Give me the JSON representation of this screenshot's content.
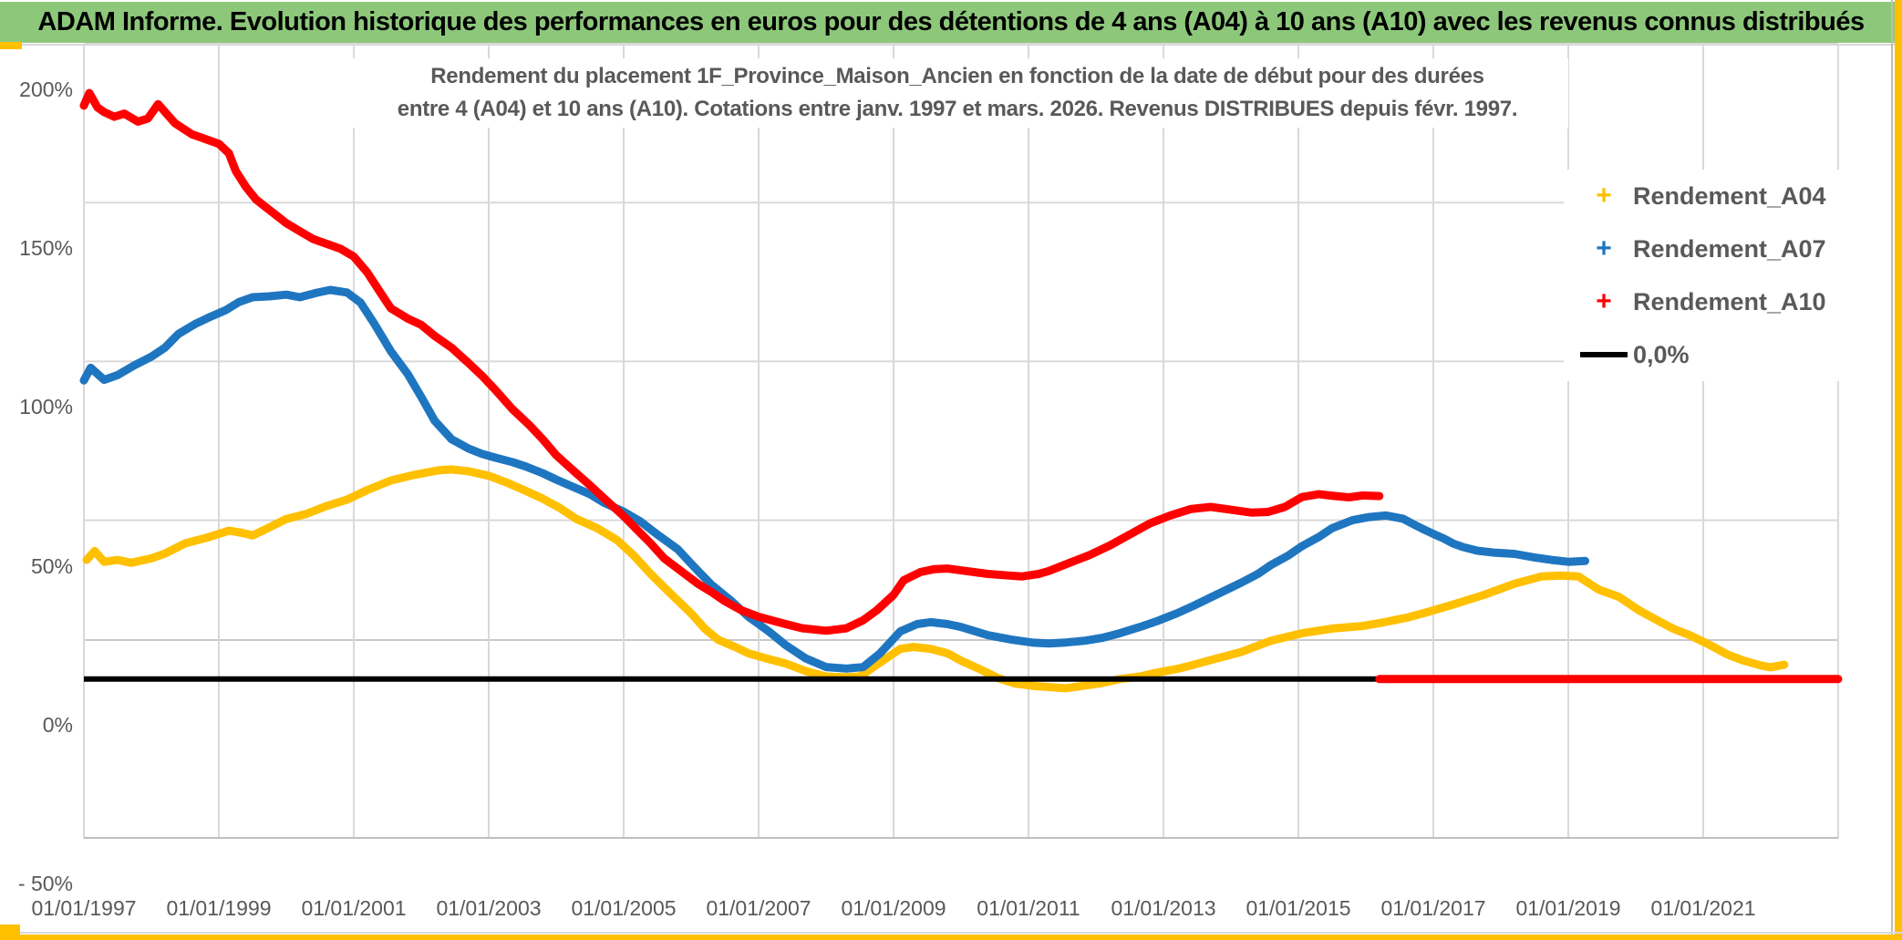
{
  "banner": {
    "title": "ADAM Informe. Evolution historique des performances en euros pour des détentions de 4 ans (A04) à 10 ans (A10) avec les revenus connus distribués",
    "bg_color": "#8DC87A",
    "accent_color": "#FFC000"
  },
  "chart": {
    "title_line1": "Rendement du placement 1F_Province_Maison_Ancien en fonction de la date de début pour des durées",
    "title_line2": "entre 4 (A04) et 10 ans (A10). Cotations entre janv. 1997 et mars. 2026. Revenus DISTRIBUES depuis févr. 1997.",
    "legend": [
      {
        "label": "Rendement_A04",
        "marker": "plus",
        "color": "#FFC000"
      },
      {
        "label": "Rendement_A07",
        "marker": "plus",
        "color": "#1F76C0"
      },
      {
        "label": "Rendement_A10",
        "marker": "plus",
        "color": "#FF0000"
      },
      {
        "label": "0,0%",
        "marker": "line",
        "color": "#000000"
      }
    ]
  },
  "chart_data": {
    "type": "line",
    "title": "Rendement du placement 1F_Province_Maison_Ancien en fonction de la date de début pour des durées entre 4 (A04) et 10 ans (A10). Cotations entre janv. 1997 et mars. 2026. Revenus DISTRIBUES depuis févr. 1997.",
    "x_axis": {
      "labels": [
        "01/01/1997",
        "01/01/1999",
        "01/01/2001",
        "01/01/2003",
        "01/01/2005",
        "01/01/2007",
        "01/01/2009",
        "01/01/2011",
        "01/01/2013",
        "01/01/2015",
        "01/01/2017",
        "01/01/2019",
        "01/01/2021"
      ],
      "label_years": [
        1997,
        1999,
        2001,
        2003,
        2005,
        2007,
        2009,
        2011,
        2013,
        2015,
        2017,
        2019,
        2021
      ],
      "gridline_years": [
        1997,
        1999,
        2001,
        2003,
        2005,
        2007,
        2009,
        2011,
        2013,
        2015,
        2017,
        2019,
        2021,
        2023
      ],
      "min_year": 1997,
      "max_year": 2023
    },
    "y_axis": {
      "tick_labels": [
        "200%",
        "150%",
        "100%",
        "50%",
        "0%",
        "- 50%"
      ],
      "tick_values": [
        200,
        150,
        100,
        50,
        0,
        -50
      ],
      "min": -50,
      "max": 200,
      "unit": "%",
      "extra_faint_line_pct": 12.3,
      "gridline_color": "#D9D9D9"
    },
    "zero_line": {
      "label": "0,0%",
      "color": "#000000",
      "value": 0,
      "from_year": 1997.0,
      "to_year": 2016.2
    },
    "red_zero_segment": {
      "color": "#FF0000",
      "value": 0,
      "from_year": 2016.2,
      "to_year": 2023.0
    },
    "series": [
      {
        "name": "Rendement_A04",
        "color": "#FFC000",
        "points": [
          [
            1997.04,
            37.5
          ],
          [
            1997.16,
            40.3
          ],
          [
            1997.3,
            36.9
          ],
          [
            1997.5,
            37.5
          ],
          [
            1997.7,
            36.6
          ],
          [
            1998.0,
            38
          ],
          [
            1998.2,
            39.5
          ],
          [
            1998.5,
            42.7
          ],
          [
            1998.85,
            44.7
          ],
          [
            1999.15,
            46.7
          ],
          [
            1999.35,
            46
          ],
          [
            1999.5,
            45.2
          ],
          [
            1999.65,
            46.7
          ],
          [
            2000.0,
            50.4
          ],
          [
            2000.3,
            52
          ],
          [
            2000.6,
            54.5
          ],
          [
            2000.9,
            56.5
          ],
          [
            2001.2,
            59.5
          ],
          [
            2001.55,
            62.5
          ],
          [
            2001.9,
            64.3
          ],
          [
            2002.25,
            65.7
          ],
          [
            2002.45,
            66
          ],
          [
            2002.7,
            65.4
          ],
          [
            2003.0,
            64
          ],
          [
            2003.25,
            62
          ],
          [
            2003.5,
            59.7
          ],
          [
            2003.8,
            56.8
          ],
          [
            2004.05,
            53.9
          ],
          [
            2004.3,
            50.4
          ],
          [
            2004.6,
            47.6
          ],
          [
            2004.9,
            43.8
          ],
          [
            2005.15,
            38.9
          ],
          [
            2005.4,
            33.1
          ],
          [
            2005.7,
            26.8
          ],
          [
            2006.0,
            20.7
          ],
          [
            2006.2,
            15.9
          ],
          [
            2006.4,
            12.4
          ],
          [
            2006.65,
            10.1
          ],
          [
            2006.85,
            8.1
          ],
          [
            2007.15,
            6.3
          ],
          [
            2007.4,
            4.9
          ],
          [
            2007.7,
            2.5
          ],
          [
            2008.0,
            0.8
          ],
          [
            2008.25,
            0.6
          ],
          [
            2008.5,
            0.8
          ],
          [
            2008.8,
            5.2
          ],
          [
            2009.1,
            9.5
          ],
          [
            2009.3,
            10.1
          ],
          [
            2009.55,
            9.5
          ],
          [
            2009.8,
            8.1
          ],
          [
            2010.0,
            5.8
          ],
          [
            2010.3,
            2.9
          ],
          [
            2010.55,
            0.3
          ],
          [
            2010.8,
            -1.4
          ],
          [
            2011.1,
            -2.2
          ],
          [
            2011.55,
            -2.9
          ],
          [
            2012.05,
            -1.4
          ],
          [
            2012.35,
            0
          ],
          [
            2012.65,
            0.8
          ],
          [
            2012.9,
            2
          ],
          [
            2013.2,
            3.2
          ],
          [
            2013.45,
            4.5
          ],
          [
            2013.7,
            6
          ],
          [
            2014.15,
            8.5
          ],
          [
            2014.6,
            12.1
          ],
          [
            2015.05,
            14.4
          ],
          [
            2015.5,
            15.9
          ],
          [
            2015.95,
            16.7
          ],
          [
            2016.2,
            17.6
          ],
          [
            2016.6,
            19.3
          ],
          [
            2016.9,
            21
          ],
          [
            2017.3,
            23.5
          ],
          [
            2017.75,
            26.5
          ],
          [
            2018.2,
            30
          ],
          [
            2018.6,
            32.3
          ],
          [
            2018.9,
            32.6
          ],
          [
            2019.15,
            32.3
          ],
          [
            2019.45,
            28.2
          ],
          [
            2019.75,
            25.9
          ],
          [
            2020.05,
            21.6
          ],
          [
            2020.3,
            18.7
          ],
          [
            2020.55,
            15.9
          ],
          [
            2020.8,
            13.8
          ],
          [
            2021.1,
            10.7
          ],
          [
            2021.35,
            7.8
          ],
          [
            2021.6,
            5.8
          ],
          [
            2021.85,
            4.3
          ],
          [
            2022.0,
            3.7
          ],
          [
            2022.2,
            4.5
          ]
        ]
      },
      {
        "name": "Rendement_A07",
        "color": "#1F76C0",
        "points": [
          [
            1997.0,
            94
          ],
          [
            1997.1,
            98
          ],
          [
            1997.3,
            94.2
          ],
          [
            1997.5,
            95.7
          ],
          [
            1997.75,
            98.8
          ],
          [
            1998.0,
            101.5
          ],
          [
            1998.2,
            104.3
          ],
          [
            1998.4,
            108.6
          ],
          [
            1998.65,
            111.8
          ],
          [
            1998.85,
            113.8
          ],
          [
            1999.1,
            116.1
          ],
          [
            1999.3,
            118.7
          ],
          [
            1999.5,
            120.2
          ],
          [
            1999.75,
            120.5
          ],
          [
            2000.0,
            121
          ],
          [
            2000.2,
            120.2
          ],
          [
            2000.45,
            121.6
          ],
          [
            2000.65,
            122.5
          ],
          [
            2000.9,
            121.7
          ],
          [
            2001.1,
            118.5
          ],
          [
            2001.3,
            112
          ],
          [
            2001.55,
            103.2
          ],
          [
            2001.8,
            96
          ],
          [
            2002.0,
            88.8
          ],
          [
            2002.2,
            81.3
          ],
          [
            2002.45,
            75.5
          ],
          [
            2002.7,
            72.6
          ],
          [
            2002.9,
            70.9
          ],
          [
            2003.1,
            69.7
          ],
          [
            2003.35,
            68.3
          ],
          [
            2003.55,
            66.9
          ],
          [
            2003.8,
            64.8
          ],
          [
            2004.0,
            62.8
          ],
          [
            2004.25,
            60.5
          ],
          [
            2004.5,
            58.2
          ],
          [
            2004.7,
            55.6
          ],
          [
            2005.0,
            52.7
          ],
          [
            2005.25,
            49.6
          ],
          [
            2005.5,
            45.5
          ],
          [
            2005.8,
            40.9
          ],
          [
            2006.05,
            35.2
          ],
          [
            2006.3,
            29.7
          ],
          [
            2006.6,
            24.5
          ],
          [
            2006.85,
            19.6
          ],
          [
            2007.15,
            15
          ],
          [
            2007.4,
            10.7
          ],
          [
            2007.7,
            6.5
          ],
          [
            2008.0,
            3.8
          ],
          [
            2008.3,
            3.3
          ],
          [
            2008.55,
            3.8
          ],
          [
            2008.8,
            8.1
          ],
          [
            2009.1,
            15
          ],
          [
            2009.35,
            17.3
          ],
          [
            2009.55,
            17.9
          ],
          [
            2009.8,
            17.3
          ],
          [
            2010.0,
            16.4
          ],
          [
            2010.4,
            13.8
          ],
          [
            2010.75,
            12.4
          ],
          [
            2011.05,
            11.5
          ],
          [
            2011.3,
            11.2
          ],
          [
            2011.55,
            11.5
          ],
          [
            2011.85,
            12.1
          ],
          [
            2012.1,
            13
          ],
          [
            2012.35,
            14.4
          ],
          [
            2012.65,
            16.4
          ],
          [
            2012.9,
            18.2
          ],
          [
            2013.2,
            20.7
          ],
          [
            2013.45,
            23.1
          ],
          [
            2013.7,
            25.7
          ],
          [
            2014.15,
            30.3
          ],
          [
            2014.4,
            33.1
          ],
          [
            2014.6,
            36
          ],
          [
            2014.85,
            38.9
          ],
          [
            2015.05,
            41.8
          ],
          [
            2015.3,
            44.7
          ],
          [
            2015.5,
            47.5
          ],
          [
            2015.8,
            50
          ],
          [
            2016.05,
            51
          ],
          [
            2016.3,
            51.5
          ],
          [
            2016.55,
            50.5
          ],
          [
            2016.7,
            48.8
          ],
          [
            2016.85,
            47.2
          ],
          [
            2017.0,
            45.7
          ],
          [
            2017.15,
            44.3
          ],
          [
            2017.3,
            42.6
          ],
          [
            2017.45,
            41.5
          ],
          [
            2017.65,
            40.4
          ],
          [
            2017.9,
            39.8
          ],
          [
            2018.2,
            39.4
          ],
          [
            2018.5,
            38.3
          ],
          [
            2018.75,
            37.5
          ],
          [
            2019.0,
            36.9
          ],
          [
            2019.25,
            37.2
          ]
        ]
      },
      {
        "name": "Rendement_A10",
        "color": "#FF0000",
        "points": [
          [
            1997.0,
            180.5
          ],
          [
            1997.08,
            184.5
          ],
          [
            1997.2,
            180
          ],
          [
            1997.3,
            178.5
          ],
          [
            1997.45,
            177
          ],
          [
            1997.6,
            178
          ],
          [
            1997.8,
            175.5
          ],
          [
            1997.95,
            176.5
          ],
          [
            1998.1,
            181
          ],
          [
            1998.35,
            175
          ],
          [
            1998.6,
            171.5
          ],
          [
            1998.8,
            170
          ],
          [
            1999.0,
            168.5
          ],
          [
            1999.15,
            165.5
          ],
          [
            1999.25,
            160
          ],
          [
            1999.4,
            155
          ],
          [
            1999.55,
            151
          ],
          [
            1999.7,
            148.5
          ],
          [
            1999.85,
            146
          ],
          [
            2000.0,
            143.5
          ],
          [
            2000.2,
            141
          ],
          [
            2000.4,
            138.5
          ],
          [
            2000.6,
            137
          ],
          [
            2000.8,
            135.5
          ],
          [
            2001.0,
            133
          ],
          [
            2001.2,
            128
          ],
          [
            2001.4,
            121.5
          ],
          [
            2001.55,
            116.7
          ],
          [
            2001.8,
            113.5
          ],
          [
            2002.0,
            111.5
          ],
          [
            2002.2,
            108
          ],
          [
            2002.45,
            104.3
          ],
          [
            2002.7,
            99.5
          ],
          [
            2002.9,
            95.5
          ],
          [
            2003.1,
            91
          ],
          [
            2003.35,
            85
          ],
          [
            2003.6,
            80
          ],
          [
            2003.8,
            75.5
          ],
          [
            2004.0,
            70.5
          ],
          [
            2004.25,
            65.7
          ],
          [
            2004.5,
            61
          ],
          [
            2004.7,
            57.1
          ],
          [
            2005.0,
            51.3
          ],
          [
            2005.2,
            47
          ],
          [
            2005.4,
            42.7
          ],
          [
            2005.6,
            38
          ],
          [
            2005.85,
            34
          ],
          [
            2006.1,
            30
          ],
          [
            2006.3,
            27.4
          ],
          [
            2006.5,
            24.5
          ],
          [
            2006.75,
            21.6
          ],
          [
            2007.0,
            19.6
          ],
          [
            2007.4,
            17.3
          ],
          [
            2007.65,
            16
          ],
          [
            2008.0,
            15.2
          ],
          [
            2008.3,
            16
          ],
          [
            2008.55,
            18.5
          ],
          [
            2008.75,
            21.6
          ],
          [
            2009.0,
            26.5
          ],
          [
            2009.15,
            31.1
          ],
          [
            2009.4,
            33.7
          ],
          [
            2009.6,
            34.6
          ],
          [
            2009.8,
            34.8
          ],
          [
            2010.0,
            34.2
          ],
          [
            2010.4,
            33.1
          ],
          [
            2010.7,
            32.6
          ],
          [
            2010.9,
            32.3
          ],
          [
            2011.15,
            33.1
          ],
          [
            2011.3,
            34
          ],
          [
            2011.6,
            36.5
          ],
          [
            2011.9,
            39
          ],
          [
            2012.2,
            42
          ],
          [
            2012.5,
            45.5
          ],
          [
            2012.8,
            49
          ],
          [
            2013.1,
            51.5
          ],
          [
            2013.4,
            53.5
          ],
          [
            2013.7,
            54.2
          ],
          [
            2014.0,
            53.3
          ],
          [
            2014.3,
            52.4
          ],
          [
            2014.55,
            52.6
          ],
          [
            2014.8,
            54.2
          ],
          [
            2015.05,
            57.3
          ],
          [
            2015.3,
            58.2
          ],
          [
            2015.55,
            57.6
          ],
          [
            2015.75,
            57.2
          ],
          [
            2015.95,
            57.8
          ],
          [
            2016.2,
            57.6
          ]
        ]
      }
    ],
    "legend_position": "right",
    "grid": true
  }
}
